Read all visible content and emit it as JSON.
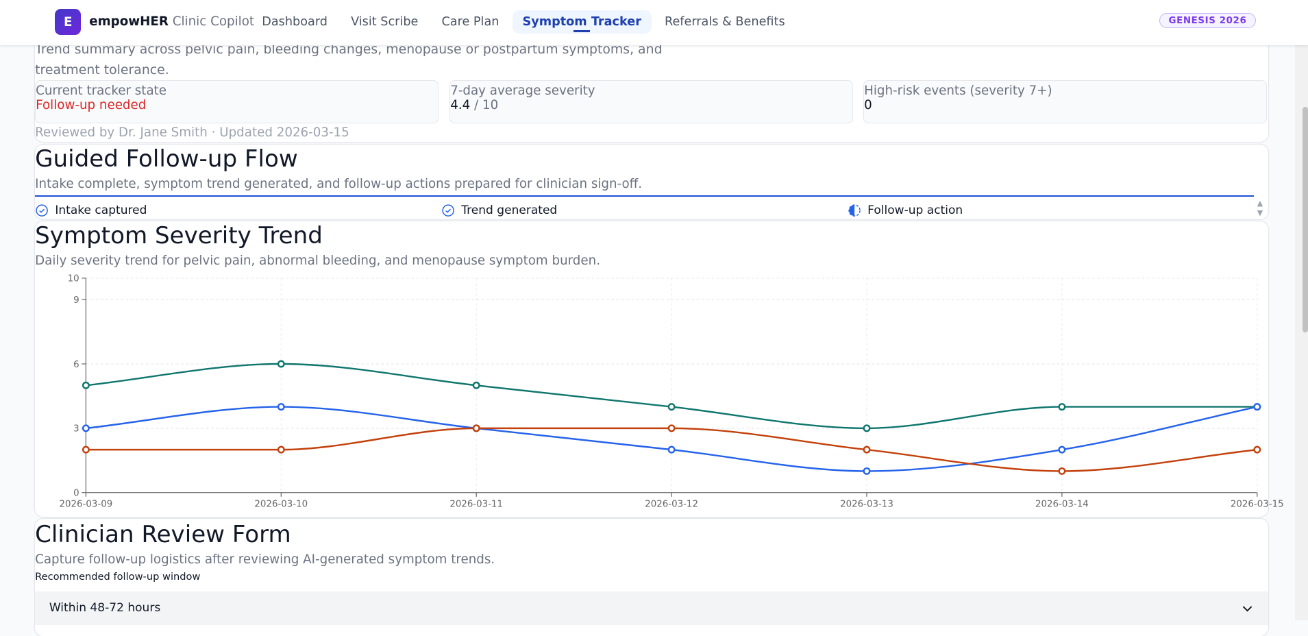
{
  "header": {
    "logo_letter": "E",
    "brand_bold": "empowHER",
    "brand_rest": "Clinic Copilot",
    "nav": [
      "Dashboard",
      "Visit Scribe",
      "Care Plan",
      "Symptom Tracker",
      "Referrals & Benefits"
    ],
    "active_nav": "Symptom Tracker",
    "badge": "GENESIS 2026"
  },
  "summary": {
    "description": "Trend summary across pelvic pain, bleeding changes, menopause or postpartum symptoms, and treatment tolerance.",
    "stats": [
      {
        "label": "Current tracker state",
        "value": "Follow-up needed",
        "suffix": ""
      },
      {
        "label": "7-day average severity",
        "value": "4.4",
        "suffix": " / 10"
      },
      {
        "label": "High-risk events (severity 7+)",
        "value": "0",
        "suffix": ""
      }
    ],
    "reviewed": "Reviewed by Dr. Jane Smith · Updated 2026-03-15"
  },
  "flow": {
    "title": "Guided Follow-up Flow",
    "subtitle": "Intake complete, symptom trend generated, and follow-up actions prepared for clinician sign-off.",
    "steps": [
      {
        "label": "Intake captured",
        "icon": "check-circle-icon"
      },
      {
        "label": "Trend generated",
        "icon": "check-circle-icon"
      },
      {
        "label": "Follow-up action",
        "icon": "half-circle-icon"
      }
    ]
  },
  "trend": {
    "title": "Symptom Severity Trend",
    "subtitle": "Daily severity trend for pelvic pain, abnormal bleeding, and menopause symptom burden."
  },
  "chart_data": {
    "type": "line",
    "categories": [
      "2026-03-09",
      "2026-03-10",
      "2026-03-11",
      "2026-03-12",
      "2026-03-13",
      "2026-03-14",
      "2026-03-15"
    ],
    "yticks": [
      0,
      3,
      6,
      9,
      10
    ],
    "ylim": [
      0,
      10
    ],
    "grid": true,
    "legend": "none",
    "series": [
      {
        "color": "#0f766e",
        "values": [
          5,
          6,
          5,
          4,
          3,
          4,
          4
        ]
      },
      {
        "color": "#2563eb",
        "values": [
          3,
          4,
          3,
          2,
          1,
          2,
          4
        ]
      },
      {
        "color": "#c2410c",
        "values": [
          2,
          2,
          3,
          3,
          2,
          1,
          2
        ]
      }
    ]
  },
  "form": {
    "title": "Clinician Review Form",
    "subtitle": "Capture follow-up logistics after reviewing AI-generated symptom trends.",
    "field_label": "Recommended follow-up window",
    "field_value": "Within 48-72 hours"
  }
}
